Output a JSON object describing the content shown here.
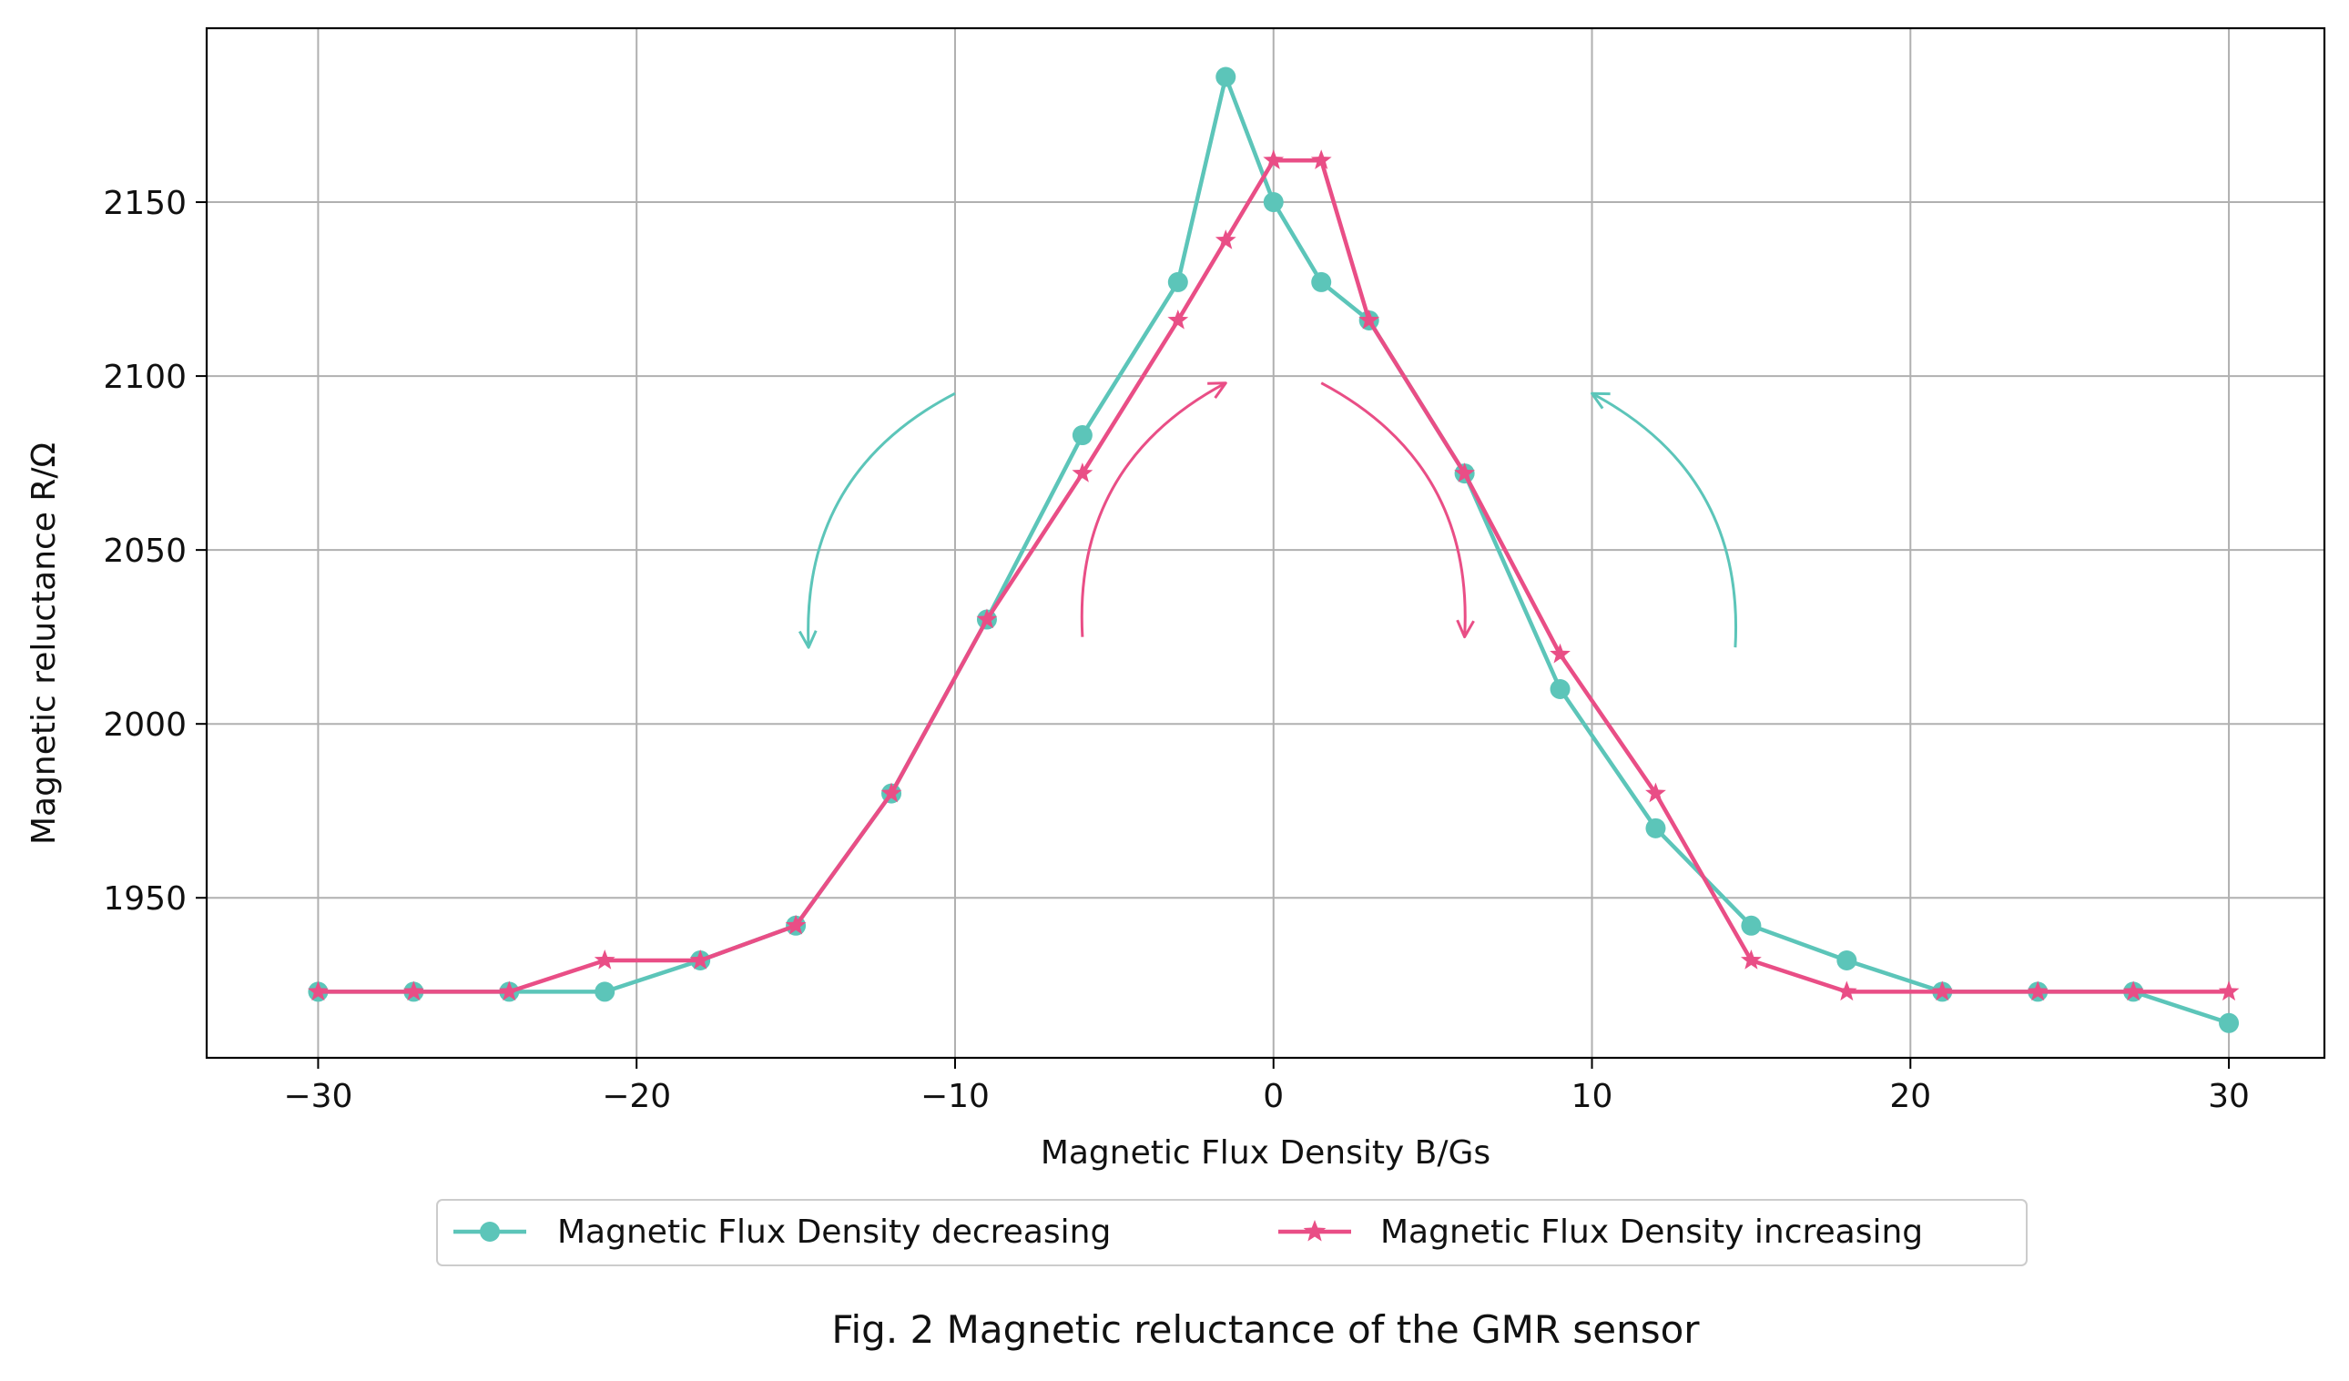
{
  "chart_data": {
    "type": "line",
    "xlabel": "Magnetic Flux Density B/Gs",
    "ylabel": "Magnetic reluctance R/Ω",
    "caption": "Fig. 2 Magnetic reluctance of the GMR sensor",
    "xlim": [
      -33.5,
      33
    ],
    "ylim": [
      1904,
      2200
    ],
    "xticks": [
      -30,
      -20,
      -10,
      0,
      10,
      20,
      30
    ],
    "xtick_labels": [
      "−30",
      "−20",
      "−10",
      "0",
      "10",
      "20",
      "30"
    ],
    "yticks": [
      1950,
      2000,
      2050,
      2100,
      2150
    ],
    "ytick_labels": [
      "1950",
      "2000",
      "2050",
      "2100",
      "2150"
    ],
    "grid": true,
    "legend_position": "bottom-center, outside",
    "series": [
      {
        "name": "Magnetic Flux Density decreasing",
        "color": "#5cc5b9",
        "marker": "circle",
        "x": [
          -30,
          -27,
          -24,
          -21,
          -18,
          -15,
          -12,
          -9,
          -6,
          -3,
          -1.5,
          0,
          1.5,
          3,
          6,
          9,
          12,
          15,
          18,
          21,
          24,
          27,
          30
        ],
        "y": [
          1923,
          1923,
          1923,
          1923,
          1932,
          1942,
          1980,
          2030,
          2083,
          2127,
          2186,
          2150,
          2127,
          2116,
          2072,
          2010,
          1970,
          1942,
          1932,
          1923,
          1923,
          1923,
          1914
        ]
      },
      {
        "name": "Magnetic Flux Density increasing",
        "color": "#e94e86",
        "marker": "star",
        "x": [
          -30,
          -27,
          -24,
          -21,
          -18,
          -15,
          -12,
          -9,
          -6,
          -3,
          -1.5,
          0,
          1.5,
          3,
          6,
          9,
          12,
          15,
          18,
          21,
          24,
          27,
          30
        ],
        "y": [
          1923,
          1923,
          1923,
          1932,
          1932,
          1942,
          1980,
          2030,
          2072,
          2116,
          2139,
          2162,
          2162,
          2116,
          2072,
          2020,
          1980,
          1932,
          1923,
          1923,
          1923,
          1923,
          1923
        ]
      }
    ],
    "annotations": [
      {
        "type": "arrow",
        "series": "Magnetic Flux Density decreasing",
        "from": [
          -10,
          2095
        ],
        "to": [
          -14.6,
          2022
        ]
      },
      {
        "type": "arrow",
        "series": "Magnetic Flux Density increasing",
        "from": [
          -6,
          2025
        ],
        "to": [
          -1.5,
          2098
        ]
      },
      {
        "type": "arrow",
        "series": "Magnetic Flux Density increasing",
        "from": [
          1.5,
          2098
        ],
        "to": [
          6,
          2025
        ]
      },
      {
        "type": "arrow",
        "series": "Magnetic Flux Density decreasing",
        "from": [
          14.5,
          2022
        ],
        "to": [
          10,
          2095
        ]
      }
    ]
  }
}
